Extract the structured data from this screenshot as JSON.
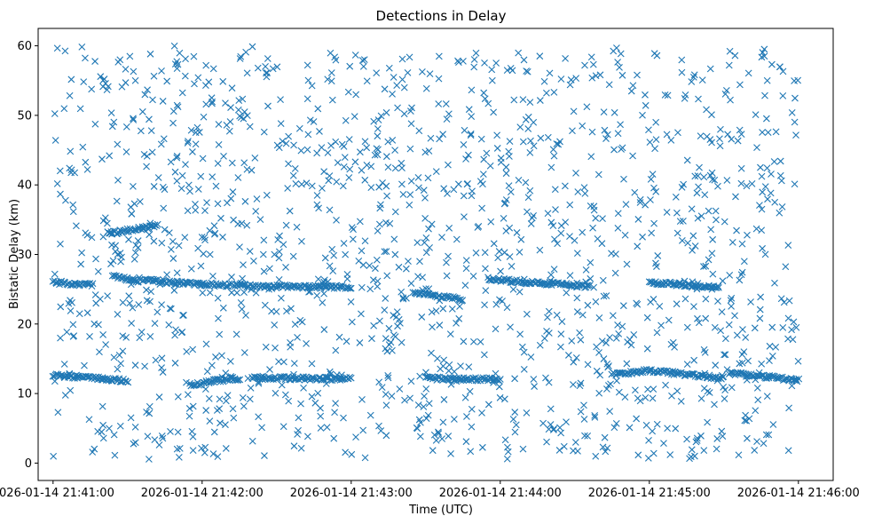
{
  "chart_data": {
    "type": "scatter",
    "title": "Detections in Delay",
    "xlabel": "Time (UTC)",
    "ylabel": "Bistatic Delay (km)",
    "marker": "x",
    "color": "#1f77b4",
    "grid": false,
    "legend": "none",
    "xlim": [
      "2026-01-14 21:40:54",
      "2026-01-14 21:46:14"
    ],
    "ylim": [
      -2.5,
      62.5
    ],
    "x_ticks": [
      "2026-01-14 21:41:00",
      "2026-01-14 21:42:00",
      "2026-01-14 21:43:00",
      "2026-01-14 21:44:00",
      "2026-01-14 21:45:00",
      "2026-01-14 21:46:00"
    ],
    "y_ticks": [
      0,
      10,
      20,
      30,
      40,
      50,
      60
    ],
    "track_series": [
      {
        "x": [
          "2026-01-14 21:41:00",
          "2026-01-14 21:41:08",
          "2026-01-14 21:41:16"
        ],
        "y": [
          26.0,
          25.8,
          25.6
        ]
      },
      {
        "x": [
          "2026-01-14 21:41:22",
          "2026-01-14 21:41:36",
          "2026-01-14 21:41:42"
        ],
        "y": [
          33.0,
          33.8,
          34.2
        ]
      },
      {
        "x": [
          "2026-01-14 21:41:24",
          "2026-01-14 21:41:35"
        ],
        "y": [
          26.8,
          26.2
        ]
      },
      {
        "x": [
          "2026-01-14 21:41:36",
          "2026-01-14 21:42:00",
          "2026-01-14 21:42:30",
          "2026-01-14 21:43:00"
        ],
        "y": [
          26.3,
          25.7,
          25.4,
          25.3
        ]
      },
      {
        "x": [
          "2026-01-14 21:43:25",
          "2026-01-14 21:43:45"
        ],
        "y": [
          24.5,
          23.5
        ]
      },
      {
        "x": [
          "2026-01-14 21:43:55",
          "2026-01-14 21:44:10",
          "2026-01-14 21:44:25",
          "2026-01-14 21:44:36"
        ],
        "y": [
          26.5,
          26.0,
          25.7,
          25.4
        ]
      },
      {
        "x": [
          "2026-01-14 21:45:00",
          "2026-01-14 21:45:12",
          "2026-01-14 21:45:28"
        ],
        "y": [
          26.0,
          25.7,
          25.2
        ]
      },
      {
        "x": [
          "2026-01-14 21:41:00",
          "2026-01-14 21:41:20",
          "2026-01-14 21:41:30"
        ],
        "y": [
          12.6,
          12.2,
          11.8
        ]
      },
      {
        "x": [
          "2026-01-14 21:41:55",
          "2026-01-14 21:42:05",
          "2026-01-14 21:42:15"
        ],
        "y": [
          11.2,
          11.8,
          12.2
        ]
      },
      {
        "x": [
          "2026-01-14 21:42:20",
          "2026-01-14 21:42:35",
          "2026-01-14 21:43:00"
        ],
        "y": [
          12.3,
          12.2,
          12.1
        ]
      },
      {
        "x": [
          "2026-01-14 21:43:30",
          "2026-01-14 21:44:00"
        ],
        "y": [
          12.2,
          12.0
        ]
      },
      {
        "x": [
          "2026-01-14 21:44:45",
          "2026-01-14 21:45:00",
          "2026-01-14 21:45:30"
        ],
        "y": [
          12.8,
          13.3,
          12.2
        ]
      },
      {
        "x": [
          "2026-01-14 21:45:32",
          "2026-01-14 21:45:48",
          "2026-01-14 21:46:00"
        ],
        "y": [
          13.0,
          12.4,
          11.9
        ]
      }
    ],
    "noise_series": {
      "count": 1500,
      "x_range": [
        "2026-01-14 21:41:00",
        "2026-01-14 21:46:00"
      ],
      "y_range": [
        0.5,
        60
      ]
    }
  }
}
